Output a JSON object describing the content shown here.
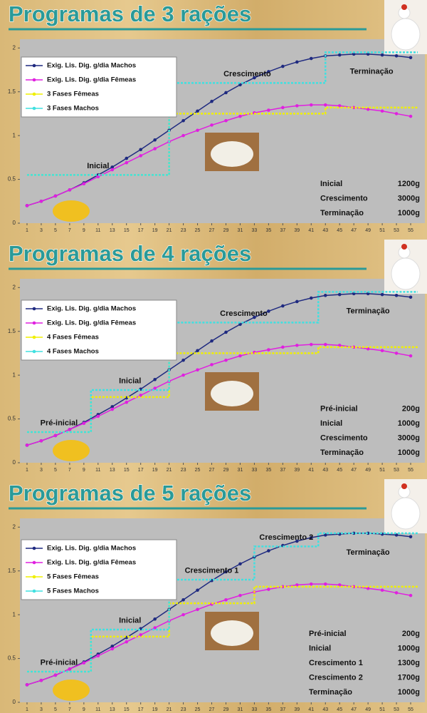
{
  "chart_data": [
    {
      "type": "line",
      "title": "Programas de 3 rações",
      "x": [
        1,
        3,
        5,
        7,
        9,
        11,
        13,
        15,
        17,
        19,
        21,
        23,
        25,
        27,
        29,
        31,
        33,
        35,
        37,
        39,
        41,
        43,
        45,
        47,
        49,
        51,
        53,
        55
      ],
      "xlim": [
        0,
        57
      ],
      "xticks": [
        1,
        3,
        5,
        7,
        9,
        11,
        13,
        15,
        17,
        19,
        21,
        23,
        25,
        27,
        29,
        31,
        33,
        35,
        37,
        39,
        41,
        43,
        45,
        47,
        49,
        51,
        53,
        55
      ],
      "ylim": [
        0,
        2.1
      ],
      "yticks": [
        0,
        0.5,
        1,
        1.5,
        2
      ],
      "series": [
        {
          "name": "Exig. Lis. Dig. g/dia Machos",
          "color": "#1f2a80",
          "values": [
            0.2,
            0.25,
            0.31,
            0.38,
            0.46,
            0.55,
            0.64,
            0.74,
            0.84,
            0.95,
            1.06,
            1.17,
            1.28,
            1.39,
            1.49,
            1.58,
            1.66,
            1.73,
            1.79,
            1.84,
            1.88,
            1.91,
            1.92,
            1.93,
            1.93,
            1.92,
            1.91,
            1.89
          ]
        },
        {
          "name": "Exig. Lis. Dig. g/dia Fêmeas",
          "color": "#e020e0",
          "values": [
            0.2,
            0.25,
            0.31,
            0.38,
            0.45,
            0.53,
            0.61,
            0.69,
            0.77,
            0.85,
            0.93,
            1.0,
            1.06,
            1.12,
            1.17,
            1.22,
            1.26,
            1.29,
            1.32,
            1.34,
            1.35,
            1.35,
            1.34,
            1.32,
            1.3,
            1.28,
            1.25,
            1.22
          ]
        },
        {
          "name": "3 Fases Fêmeas",
          "color": "#f0f000",
          "x": [
            1,
            21,
            21,
            43,
            43,
            56
          ],
          "values": [
            0.55,
            0.55,
            1.25,
            1.25,
            1.32,
            1.32
          ]
        },
        {
          "name": "3 Fases Machos",
          "color": "#40e0e0",
          "x": [
            1,
            21,
            21,
            43,
            43,
            56
          ],
          "values": [
            0.55,
            0.55,
            1.6,
            1.6,
            1.95,
            1.95
          ]
        }
      ],
      "phases": [
        {
          "name": "Inicial",
          "amount": "1200g"
        },
        {
          "name": "Crescimento",
          "amount": "3000g"
        },
        {
          "name": "Terminação",
          "amount": "1000g"
        }
      ]
    },
    {
      "type": "line",
      "title": "Programas de 4 rações",
      "x": [
        1,
        3,
        5,
        7,
        9,
        11,
        13,
        15,
        17,
        19,
        21,
        23,
        25,
        27,
        29,
        31,
        33,
        35,
        37,
        39,
        41,
        43,
        45,
        47,
        49,
        51,
        53,
        55
      ],
      "xlim": [
        0,
        57
      ],
      "xticks": [
        1,
        3,
        5,
        7,
        9,
        11,
        13,
        15,
        17,
        19,
        21,
        23,
        25,
        27,
        29,
        31,
        33,
        35,
        37,
        39,
        41,
        43,
        45,
        47,
        49,
        51,
        53,
        55
      ],
      "ylim": [
        0,
        2.1
      ],
      "yticks": [
        0,
        0.5,
        1,
        1.5,
        2
      ],
      "series": [
        {
          "name": "Exig. Lis. Dig. g/dia Machos",
          "color": "#1f2a80",
          "values": [
            0.2,
            0.25,
            0.31,
            0.38,
            0.46,
            0.55,
            0.64,
            0.74,
            0.84,
            0.95,
            1.06,
            1.17,
            1.28,
            1.39,
            1.49,
            1.58,
            1.66,
            1.73,
            1.79,
            1.84,
            1.88,
            1.91,
            1.92,
            1.93,
            1.93,
            1.92,
            1.91,
            1.89
          ]
        },
        {
          "name": "Exig. Lis. Dig. g/dia Fêmeas",
          "color": "#e020e0",
          "values": [
            0.2,
            0.25,
            0.31,
            0.38,
            0.45,
            0.53,
            0.61,
            0.69,
            0.77,
            0.85,
            0.93,
            1.0,
            1.06,
            1.12,
            1.17,
            1.22,
            1.26,
            1.29,
            1.32,
            1.34,
            1.35,
            1.35,
            1.34,
            1.32,
            1.3,
            1.28,
            1.25,
            1.22
          ]
        },
        {
          "name": "4 Fases Fêmeas",
          "color": "#f0f000",
          "x": [
            1,
            10,
            10,
            21,
            21,
            42,
            42,
            56
          ],
          "values": [
            0.35,
            0.35,
            0.75,
            0.75,
            1.25,
            1.25,
            1.32,
            1.32
          ]
        },
        {
          "name": "4 Fases Machos",
          "color": "#40e0e0",
          "x": [
            1,
            10,
            10,
            21,
            21,
            42,
            42,
            56
          ],
          "values": [
            0.35,
            0.35,
            0.83,
            0.83,
            1.6,
            1.6,
            1.95,
            1.95
          ]
        }
      ],
      "phases": [
        {
          "name": "Pré-inicial",
          "amount": "200g"
        },
        {
          "name": "Inicial",
          "amount": "1000g"
        },
        {
          "name": "Crescimento",
          "amount": "3000g"
        },
        {
          "name": "Terminação",
          "amount": "1000g"
        }
      ]
    },
    {
      "type": "line",
      "title": "Programas de 5 rações",
      "x": [
        1,
        3,
        5,
        7,
        9,
        11,
        13,
        15,
        17,
        19,
        21,
        23,
        25,
        27,
        29,
        31,
        33,
        35,
        37,
        39,
        41,
        43,
        45,
        47,
        49,
        51,
        53,
        55
      ],
      "xlim": [
        0,
        57
      ],
      "xticks": [
        1,
        3,
        5,
        7,
        9,
        11,
        13,
        15,
        17,
        19,
        21,
        23,
        25,
        27,
        29,
        31,
        33,
        35,
        37,
        39,
        41,
        43,
        45,
        47,
        49,
        51,
        53,
        55
      ],
      "ylim": [
        0,
        2.1
      ],
      "yticks": [
        0,
        0.5,
        1,
        1.5,
        2
      ],
      "series": [
        {
          "name": "Exig. Lis. Dig. g/dia Machos",
          "color": "#1f2a80",
          "values": [
            0.2,
            0.25,
            0.31,
            0.38,
            0.46,
            0.55,
            0.64,
            0.74,
            0.84,
            0.95,
            1.06,
            1.17,
            1.28,
            1.39,
            1.49,
            1.58,
            1.66,
            1.73,
            1.79,
            1.84,
            1.88,
            1.91,
            1.92,
            1.93,
            1.93,
            1.92,
            1.91,
            1.89
          ]
        },
        {
          "name": "Exig. Lis. Dig. g/dia Fêmeas",
          "color": "#e020e0",
          "values": [
            0.2,
            0.25,
            0.31,
            0.38,
            0.45,
            0.53,
            0.61,
            0.69,
            0.77,
            0.85,
            0.93,
            1.0,
            1.06,
            1.12,
            1.17,
            1.22,
            1.26,
            1.29,
            1.32,
            1.34,
            1.35,
            1.35,
            1.34,
            1.32,
            1.3,
            1.28,
            1.25,
            1.22
          ]
        },
        {
          "name": "5 Fases Fêmeas",
          "color": "#f0f000",
          "x": [
            1,
            10,
            10,
            21,
            21,
            33,
            33,
            42,
            42,
            56
          ],
          "values": [
            0.35,
            0.35,
            0.75,
            0.75,
            1.13,
            1.13,
            1.32,
            1.32,
            1.32,
            1.32
          ]
        },
        {
          "name": "5 Fases Machos",
          "color": "#40e0e0",
          "x": [
            1,
            10,
            10,
            21,
            21,
            33,
            33,
            42,
            42,
            56
          ],
          "values": [
            0.35,
            0.35,
            0.83,
            0.83,
            1.4,
            1.4,
            1.78,
            1.78,
            1.93,
            1.93
          ]
        }
      ],
      "phases": [
        {
          "name": "Pré-inicial",
          "amount": "200g"
        },
        {
          "name": "Inicial",
          "amount": "1000g"
        },
        {
          "name": "Crescimento 1",
          "amount": "1300g"
        },
        {
          "name": "Crescimento 2",
          "amount": "1700g"
        },
        {
          "name": "Terminação",
          "amount": "1000g"
        }
      ]
    }
  ]
}
